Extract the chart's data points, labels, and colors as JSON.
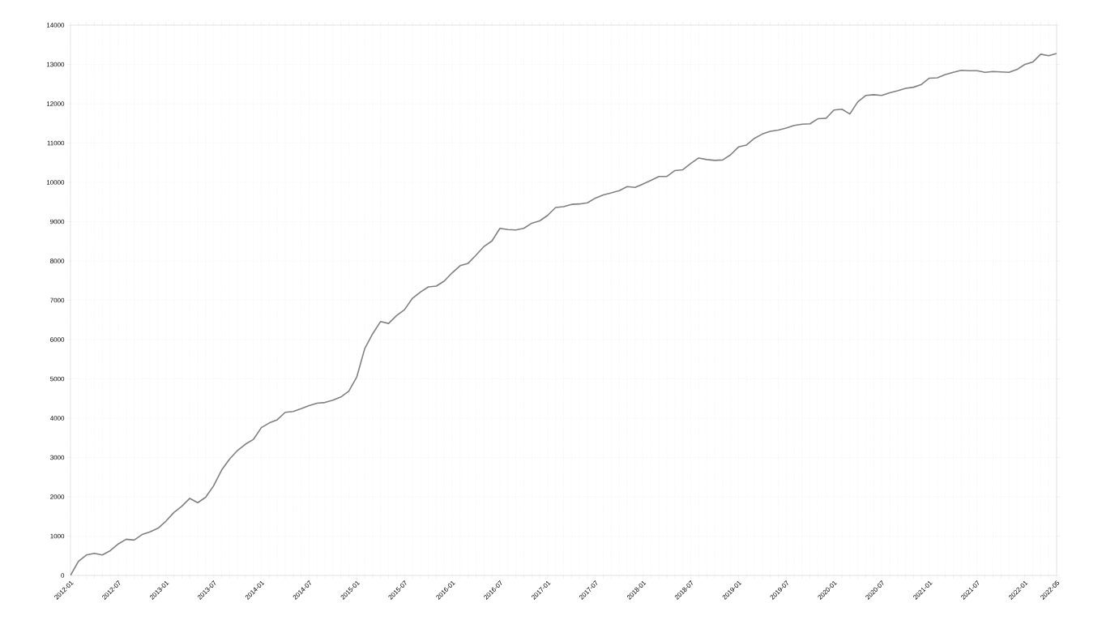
{
  "chart_data": {
    "type": "line",
    "x": [
      "2012-01",
      "2012-02",
      "2012-03",
      "2012-04",
      "2012-05",
      "2012-06",
      "2012-07",
      "2012-08",
      "2012-09",
      "2012-10",
      "2012-11",
      "2012-12",
      "2013-01",
      "2013-02",
      "2013-03",
      "2013-04",
      "2013-05",
      "2013-06",
      "2013-07",
      "2013-08",
      "2013-09",
      "2013-10",
      "2013-11",
      "2013-12",
      "2014-01",
      "2014-02",
      "2014-03",
      "2014-04",
      "2014-05",
      "2014-06",
      "2014-07",
      "2014-08",
      "2014-09",
      "2014-10",
      "2014-11",
      "2014-12",
      "2015-01",
      "2015-02",
      "2015-03",
      "2015-04",
      "2015-05",
      "2015-06",
      "2015-07",
      "2015-08",
      "2015-09",
      "2015-10",
      "2015-11",
      "2015-12",
      "2016-01",
      "2016-02",
      "2016-03",
      "2016-04",
      "2016-05",
      "2016-06",
      "2016-07",
      "2016-08",
      "2016-09",
      "2016-10",
      "2016-11",
      "2016-12",
      "2017-01",
      "2017-02",
      "2017-03",
      "2017-04",
      "2017-05",
      "2017-06",
      "2017-07",
      "2017-08",
      "2017-09",
      "2017-10",
      "2017-11",
      "2017-12",
      "2018-01",
      "2018-02",
      "2018-03",
      "2018-04",
      "2018-05",
      "2018-06",
      "2018-07",
      "2018-08",
      "2018-09",
      "2018-10",
      "2018-11",
      "2018-12",
      "2019-01",
      "2019-02",
      "2019-03",
      "2019-04",
      "2019-05",
      "2019-06",
      "2019-07",
      "2019-08",
      "2019-09",
      "2019-10",
      "2019-11",
      "2019-12",
      "2020-01",
      "2020-02",
      "2020-03",
      "2020-04",
      "2020-05",
      "2020-06",
      "2020-07",
      "2020-08",
      "2020-09",
      "2020-10",
      "2020-11",
      "2020-12",
      "2021-01",
      "2021-02",
      "2021-03",
      "2021-04",
      "2021-05",
      "2021-06",
      "2021-07",
      "2021-08",
      "2021-09",
      "2021-10",
      "2021-11",
      "2021-12",
      "2022-01",
      "2022-02",
      "2022-03",
      "2022-04",
      "2022-05"
    ],
    "series": [
      {
        "color": "#808080",
        "values": [
          0,
          360,
          520,
          560,
          520,
          630,
          800,
          920,
          900,
          1040,
          1110,
          1200,
          1380,
          1600,
          1760,
          1960,
          1850,
          1990,
          2280,
          2680,
          2960,
          3180,
          3340,
          3460,
          3760,
          3880,
          3960,
          4150,
          4170,
          4240,
          4320,
          4380,
          4400,
          4460,
          4540,
          4690,
          5050,
          5770,
          6150,
          6460,
          6410,
          6610,
          6760,
          7050,
          7210,
          7340,
          7360,
          7490,
          7700,
          7880,
          7940,
          8150,
          8370,
          8510,
          8830,
          8800,
          8790,
          8830,
          8960,
          9020,
          9160,
          9360,
          9380,
          9440,
          9450,
          9480,
          9600,
          9680,
          9730,
          9790,
          9890,
          9870,
          9960,
          10050,
          10150,
          10150,
          10300,
          10320,
          10480,
          10620,
          10580,
          10560,
          10570,
          10700,
          10900,
          10950,
          11120,
          11230,
          11300,
          11330,
          11380,
          11450,
          11480,
          11490,
          11620,
          11630,
          11840,
          11860,
          11740,
          12050,
          12210,
          12230,
          12210,
          12280,
          12330,
          12390,
          12420,
          12490,
          12650,
          12660,
          12740,
          12800,
          12850,
          12840,
          12840,
          12800,
          12820,
          12810,
          12800,
          12870,
          13000,
          13060,
          13260,
          13220,
          13280
        ]
      }
    ],
    "xlim": [
      "2012-01",
      "2022-05"
    ],
    "xticks": [
      "2012-01",
      {
        "value": "2012-02",
        "label": null
      },
      {
        "value": "2012-03",
        "label": null
      },
      {
        "value": "2012-04",
        "label": null
      },
      {
        "value": "2012-05",
        "label": null
      },
      {
        "value": "2012-06",
        "label": null
      },
      "2012-07",
      {
        "value": "2012-08",
        "label": null
      },
      {
        "value": "2012-09",
        "label": null
      },
      {
        "value": "2012-10",
        "label": null
      },
      {
        "value": "2012-11",
        "label": null
      },
      {
        "value": "2012-12",
        "label": null
      },
      "2013-01",
      {
        "value": "2013-02",
        "label": null
      },
      {
        "value": "2013-03",
        "label": null
      },
      {
        "value": "2013-04",
        "label": null
      },
      {
        "value": "2013-05",
        "label": null
      },
      {
        "value": "2013-06",
        "label": null
      },
      "2013-07",
      {
        "value": "2013-08",
        "label": null
      },
      {
        "value": "2013-09",
        "label": null
      },
      {
        "value": "2013-10",
        "label": null
      },
      {
        "value": "2013-11",
        "label": null
      },
      {
        "value": "2013-12",
        "label": null
      },
      "2014-01",
      {
        "value": "2014-02",
        "label": null
      },
      {
        "value": "2014-03",
        "label": null
      },
      {
        "value": "2014-04",
        "label": null
      },
      {
        "value": "2014-05",
        "label": null
      },
      {
        "value": "2014-06",
        "label": null
      },
      "2014-07",
      {
        "value": "2014-08",
        "label": null
      },
      {
        "value": "2014-09",
        "label": null
      },
      {
        "value": "2014-10",
        "label": null
      },
      {
        "value": "2014-11",
        "label": null
      },
      {
        "value": "2014-12",
        "label": null
      },
      "2015-01",
      {
        "value": "2015-02",
        "label": null
      },
      {
        "value": "2015-03",
        "label": null
      },
      {
        "value": "2015-04",
        "label": null
      },
      {
        "value": "2015-05",
        "label": null
      },
      {
        "value": "2015-06",
        "label": null
      },
      "2015-07",
      {
        "value": "2015-08",
        "label": null
      },
      {
        "value": "2015-09",
        "label": null
      },
      {
        "value": "2015-10",
        "label": null
      },
      {
        "value": "2015-11",
        "label": null
      },
      {
        "value": "2015-12",
        "label": null
      },
      "2016-01",
      {
        "value": "2016-02",
        "label": null
      },
      {
        "value": "2016-03",
        "label": null
      },
      {
        "value": "2016-04",
        "label": null
      },
      {
        "value": "2016-05",
        "label": null
      },
      {
        "value": "2016-06",
        "label": null
      },
      "2016-07",
      {
        "value": "2016-08",
        "label": null
      },
      {
        "value": "2016-09",
        "label": null
      },
      {
        "value": "2016-10",
        "label": null
      },
      {
        "value": "2016-11",
        "label": null
      },
      {
        "value": "2016-12",
        "label": null
      },
      "2017-01",
      {
        "value": "2017-02",
        "label": null
      },
      {
        "value": "2017-03",
        "label": null
      },
      {
        "value": "2017-04",
        "label": null
      },
      {
        "value": "2017-05",
        "label": null
      },
      {
        "value": "2017-06",
        "label": null
      },
      "2017-07",
      {
        "value": "2017-08",
        "label": null
      },
      {
        "value": "2017-09",
        "label": null
      },
      {
        "value": "2017-10",
        "label": null
      },
      {
        "value": "2017-11",
        "label": null
      },
      {
        "value": "2017-12",
        "label": null
      },
      "2018-01",
      {
        "value": "2018-02",
        "label": null
      },
      {
        "value": "2018-03",
        "label": null
      },
      {
        "value": "2018-04",
        "label": null
      },
      {
        "value": "2018-05",
        "label": null
      },
      {
        "value": "2018-06",
        "label": null
      },
      "2018-07",
      {
        "value": "2018-08",
        "label": null
      },
      {
        "value": "2018-09",
        "label": null
      },
      {
        "value": "2018-10",
        "label": null
      },
      {
        "value": "2018-11",
        "label": null
      },
      {
        "value": "2018-12",
        "label": null
      },
      "2019-01",
      {
        "value": "2019-02",
        "label": null
      },
      {
        "value": "2019-03",
        "label": null
      },
      {
        "value": "2019-04",
        "label": null
      },
      {
        "value": "2019-05",
        "label": null
      },
      {
        "value": "2019-06",
        "label": null
      },
      "2019-07",
      {
        "value": "2019-08",
        "label": null
      },
      {
        "value": "2019-09",
        "label": null
      },
      {
        "value": "2019-10",
        "label": null
      },
      {
        "value": "2019-11",
        "label": null
      },
      {
        "value": "2019-12",
        "label": null
      },
      "2020-01",
      {
        "value": "2020-02",
        "label": null
      },
      {
        "value": "2020-03",
        "label": null
      },
      {
        "value": "2020-04",
        "label": null
      },
      {
        "value": "2020-05",
        "label": null
      },
      {
        "value": "2020-06",
        "label": null
      },
      "2020-07",
      {
        "value": "2020-08",
        "label": null
      },
      {
        "value": "2020-09",
        "label": null
      },
      {
        "value": "2020-10",
        "label": null
      },
      {
        "value": "2020-11",
        "label": null
      },
      {
        "value": "2020-12",
        "label": null
      },
      "2021-01",
      {
        "value": "2021-02",
        "label": null
      },
      {
        "value": "2021-03",
        "label": null
      },
      {
        "value": "2021-04",
        "label": null
      },
      {
        "value": "2021-05",
        "label": null
      },
      {
        "value": "2021-06",
        "label": null
      },
      "2021-07",
      {
        "value": "2021-08",
        "label": null
      },
      {
        "value": "2021-09",
        "label": null
      },
      {
        "value": "2021-10",
        "label": null
      },
      {
        "value": "2021-11",
        "label": null
      },
      {
        "value": "2021-12",
        "label": null
      },
      "2022-01",
      {
        "value": "2022-02",
        "label": null
      },
      {
        "value": "2022-03",
        "label": null
      },
      {
        "value": "2022-04",
        "label": null
      },
      "2022-05"
    ],
    "ylim": [
      0,
      14000
    ],
    "yticks": [
      0,
      1000,
      2000,
      3000,
      4000,
      5000,
      6000,
      7000,
      8000,
      9000,
      10000,
      11000,
      12000,
      13000,
      14000
    ],
    "grid": true,
    "legend": false,
    "marker": "none",
    "line_style": "solid"
  }
}
